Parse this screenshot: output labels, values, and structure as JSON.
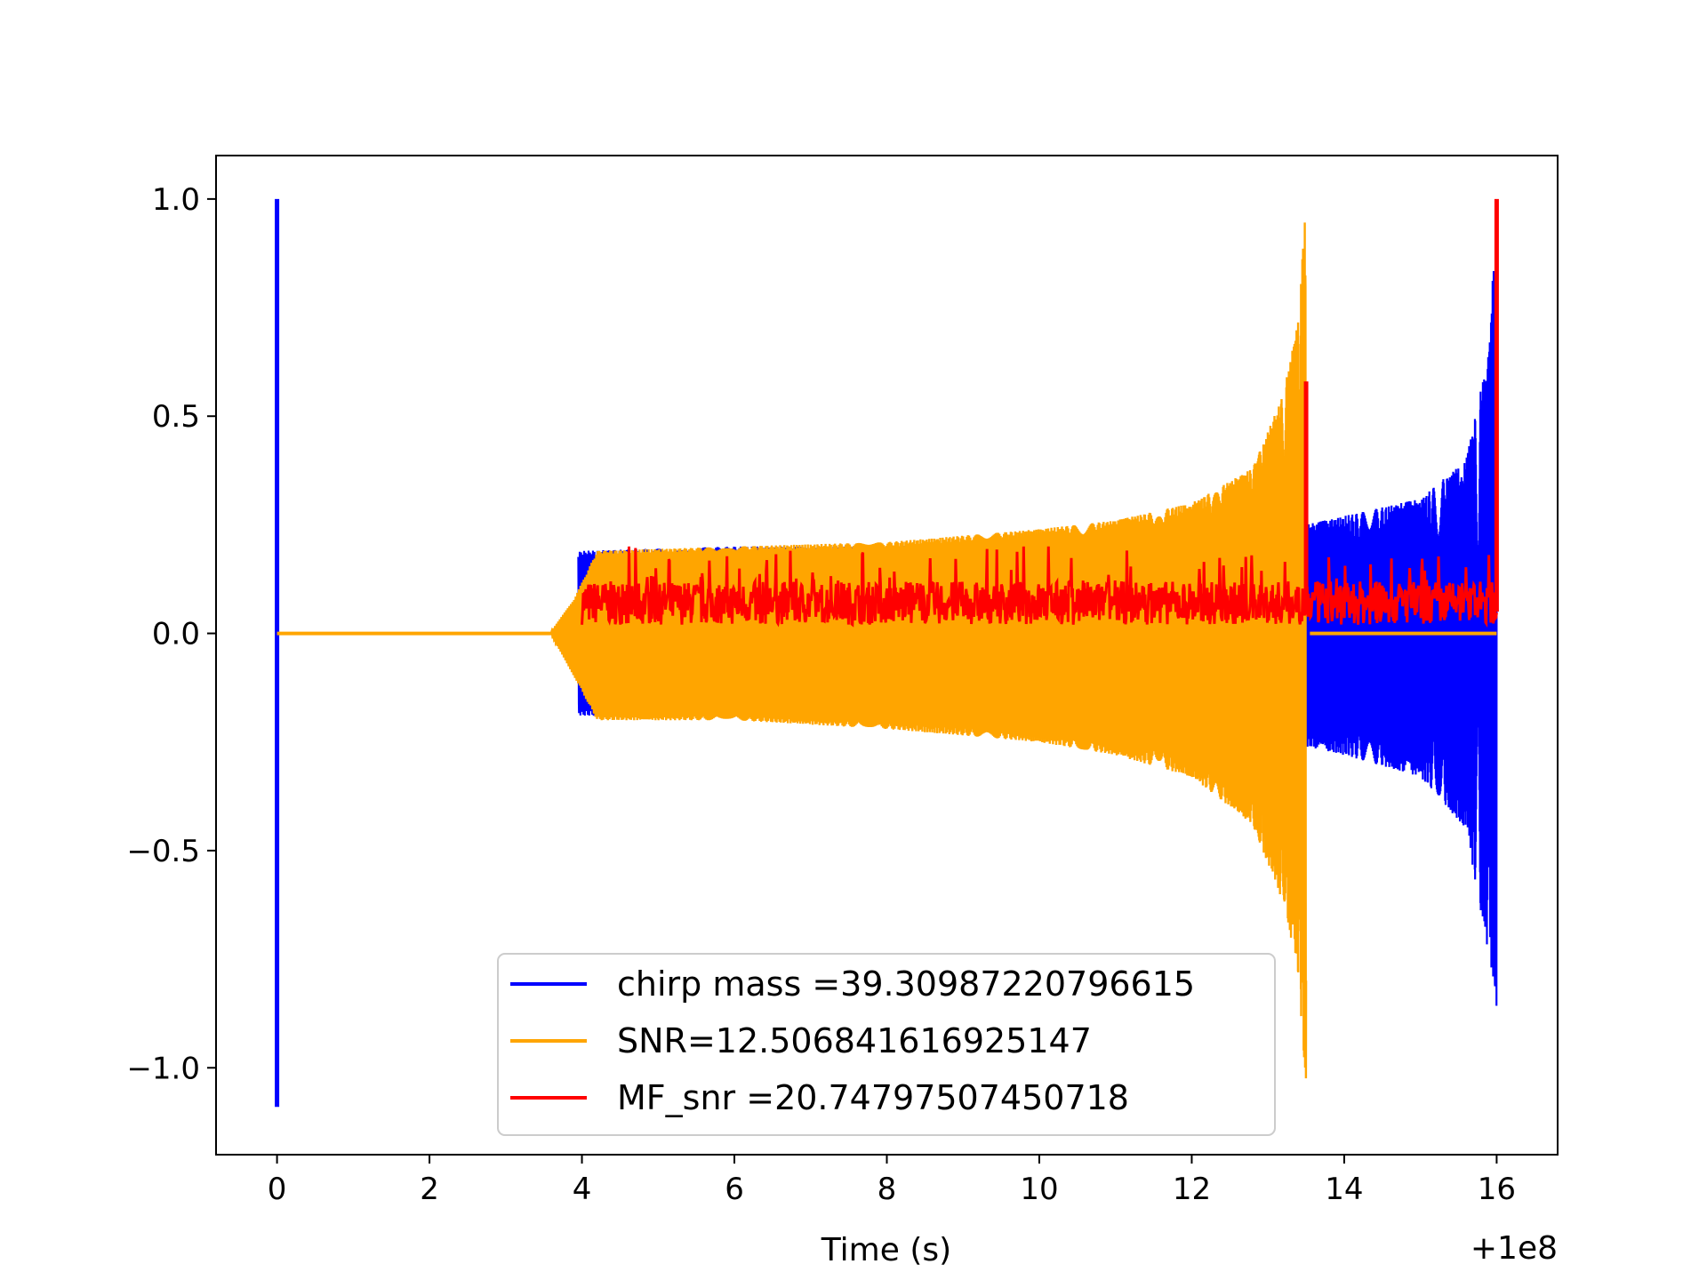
{
  "chart_data": {
    "type": "line",
    "title": "",
    "xlabel": "Time (s)",
    "ylabel": "",
    "x_offset_label": "+1e8",
    "xlim": [
      -0.8,
      16.8
    ],
    "ylim": [
      -1.2,
      1.1
    ],
    "xticks": [
      0,
      2,
      4,
      6,
      8,
      10,
      12,
      14,
      16
    ],
    "xtick_labels": [
      "0",
      "2",
      "4",
      "6",
      "8",
      "10",
      "12",
      "14",
      "16"
    ],
    "yticks": [
      1.0,
      0.5,
      0.0,
      -0.5,
      -1.0
    ],
    "ytick_labels": [
      "1.0",
      "0.5",
      "0.0",
      "−0.5",
      "−1.0"
    ],
    "grid": false,
    "legend": {
      "placement": "lower center",
      "entries": [
        {
          "label": "chirp mass =39.30987220796615",
          "color": "#0000ff"
        },
        {
          "label": "SNR=12.506841616925147",
          "color": "#ffa500"
        },
        {
          "label": "MF_snr =20.74797507450718",
          "color": "#ff0000"
        }
      ]
    },
    "series": [
      {
        "label": "chirp mass =39.30987220796615",
        "color": "#0000ff",
        "description": "normalized strain, zero until ~4 s, oscillating chirp growing to peak at ~16 s",
        "envelope_x": [
          0,
          4.0,
          6,
          8,
          10,
          12,
          13.5,
          14,
          15,
          15.6,
          15.9,
          16.0
        ],
        "envelope_upper": [
          0,
          0.19,
          0.2,
          0.2,
          0.21,
          0.23,
          0.25,
          0.27,
          0.31,
          0.4,
          0.65,
          1.0
        ],
        "envelope_lower": [
          0,
          -0.19,
          -0.19,
          -0.2,
          -0.21,
          -0.23,
          -0.26,
          -0.28,
          -0.33,
          -0.45,
          -0.75,
          -0.86
        ],
        "spike_x": 0.0,
        "spike_range": [
          -1.09,
          1.0
        ]
      },
      {
        "label": "SNR=12.506841616925147",
        "color": "#ffa500",
        "description": "normalized strain chirp, starting ~3.6 s, peak at ~13.5 s",
        "envelope_x": [
          0,
          3.6,
          3.9,
          4.2,
          6,
          8,
          10,
          11,
          12,
          12.8,
          13.2,
          13.4,
          13.5
        ],
        "envelope_upper": [
          0,
          0.005,
          0.08,
          0.19,
          0.2,
          0.21,
          0.24,
          0.26,
          0.3,
          0.38,
          0.55,
          0.72,
          1.0
        ],
        "envelope_lower": [
          0,
          -0.005,
          -0.1,
          -0.2,
          -0.2,
          -0.22,
          -0.25,
          -0.28,
          -0.33,
          -0.44,
          -0.62,
          -0.8,
          -1.04
        ],
        "flat_after": [
          13.55,
          16.0
        ]
      },
      {
        "label": "MF_snr =20.74797507450718",
        "color": "#ff0000",
        "description": "matched filter output, noisy band around 0.07 from 4 s to 16 s with spikes",
        "band_x": [
          4.0,
          16.0
        ],
        "band_range": [
          0.0,
          0.16
        ],
        "spikes": [
          {
            "x": 13.5,
            "y": 0.58
          },
          {
            "x": 16.0,
            "y": 1.0
          }
        ]
      }
    ]
  }
}
